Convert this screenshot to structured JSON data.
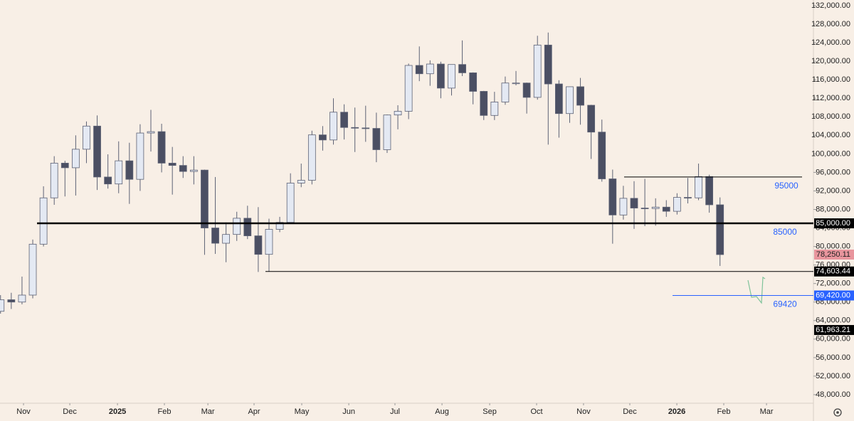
{
  "chart_data": {
    "type": "candlestick",
    "candles": [
      {
        "o": 66000,
        "h": 69500,
        "l": 65500,
        "c": 68500
      },
      {
        "o": 68500,
        "h": 70000,
        "l": 66500,
        "c": 68000
      },
      {
        "o": 68000,
        "h": 73500,
        "l": 67500,
        "c": 69500
      },
      {
        "o": 69500,
        "h": 81500,
        "l": 68800,
        "c": 80500
      },
      {
        "o": 80500,
        "h": 93000,
        "l": 80000,
        "c": 90500
      },
      {
        "o": 90500,
        "h": 99500,
        "l": 89000,
        "c": 98000
      },
      {
        "o": 98000,
        "h": 98500,
        "l": 90800,
        "c": 97000
      },
      {
        "o": 97000,
        "h": 104000,
        "l": 91000,
        "c": 101000
      },
      {
        "o": 101000,
        "h": 107000,
        "l": 98000,
        "c": 106000
      },
      {
        "o": 106000,
        "h": 108300,
        "l": 92200,
        "c": 95000
      },
      {
        "o": 95000,
        "h": 99900,
        "l": 92500,
        "c": 93500
      },
      {
        "o": 93500,
        "h": 102700,
        "l": 91500,
        "c": 98500
      },
      {
        "o": 98500,
        "h": 102400,
        "l": 89200,
        "c": 94500
      },
      {
        "o": 94500,
        "h": 106400,
        "l": 92000,
        "c": 104500
      },
      {
        "o": 104500,
        "h": 109500,
        "l": 100500,
        "c": 104800
      },
      {
        "o": 104800,
        "h": 106500,
        "l": 96000,
        "c": 98000
      },
      {
        "o": 98000,
        "h": 101500,
        "l": 91200,
        "c": 97500
      },
      {
        "o": 97500,
        "h": 99500,
        "l": 94800,
        "c": 96200
      },
      {
        "o": 96200,
        "h": 99500,
        "l": 93400,
        "c": 96500
      },
      {
        "o": 96500,
        "h": 96600,
        "l": 78200,
        "c": 84000
      },
      {
        "o": 84000,
        "h": 95000,
        "l": 78400,
        "c": 80700
      },
      {
        "o": 80700,
        "h": 85200,
        "l": 76600,
        "c": 82600
      },
      {
        "o": 82600,
        "h": 87500,
        "l": 81200,
        "c": 86100
      },
      {
        "o": 86100,
        "h": 88800,
        "l": 81600,
        "c": 82300
      },
      {
        "o": 82300,
        "h": 88500,
        "l": 74500,
        "c": 78300
      },
      {
        "o": 78300,
        "h": 86000,
        "l": 74600,
        "c": 83700
      },
      {
        "o": 83700,
        "h": 86400,
        "l": 83100,
        "c": 85200
      },
      {
        "o": 85200,
        "h": 95800,
        "l": 85100,
        "c": 93700
      },
      {
        "o": 93700,
        "h": 97900,
        "l": 92800,
        "c": 94300
      },
      {
        "o": 94300,
        "h": 105000,
        "l": 93400,
        "c": 104100
      },
      {
        "o": 104100,
        "h": 106000,
        "l": 100700,
        "c": 103000
      },
      {
        "o": 103000,
        "h": 112000,
        "l": 102000,
        "c": 109000
      },
      {
        "o": 109000,
        "h": 110700,
        "l": 103100,
        "c": 105700
      },
      {
        "o": 105700,
        "h": 110000,
        "l": 100400,
        "c": 105600
      },
      {
        "o": 105600,
        "h": 110400,
        "l": 102600,
        "c": 105500
      },
      {
        "o": 105500,
        "h": 108900,
        "l": 98200,
        "c": 100900
      },
      {
        "o": 100900,
        "h": 108500,
        "l": 100200,
        "c": 108400
      },
      {
        "o": 108400,
        "h": 110500,
        "l": 105300,
        "c": 109200
      },
      {
        "o": 109200,
        "h": 119500,
        "l": 107500,
        "c": 119100
      },
      {
        "o": 119100,
        "h": 123200,
        "l": 115700,
        "c": 117300
      },
      {
        "o": 117300,
        "h": 120200,
        "l": 114700,
        "c": 119400
      },
      {
        "o": 119400,
        "h": 119900,
        "l": 112000,
        "c": 114200
      },
      {
        "o": 114200,
        "h": 119300,
        "l": 112600,
        "c": 119300
      },
      {
        "o": 119300,
        "h": 124500,
        "l": 116800,
        "c": 117500
      },
      {
        "o": 117500,
        "h": 117600,
        "l": 110700,
        "c": 113500
      },
      {
        "o": 113500,
        "h": 113600,
        "l": 107300,
        "c": 108300
      },
      {
        "o": 108300,
        "h": 113400,
        "l": 107300,
        "c": 111200
      },
      {
        "o": 111200,
        "h": 116700,
        "l": 110600,
        "c": 115300
      },
      {
        "o": 115300,
        "h": 117900,
        "l": 114800,
        "c": 115300
      },
      {
        "o": 115300,
        "h": 115400,
        "l": 108700,
        "c": 112200
      },
      {
        "o": 112200,
        "h": 125500,
        "l": 111700,
        "c": 123500
      },
      {
        "o": 123500,
        "h": 126200,
        "l": 102000,
        "c": 115100
      },
      {
        "o": 115100,
        "h": 115900,
        "l": 103500,
        "c": 108700
      },
      {
        "o": 108700,
        "h": 114000,
        "l": 106700,
        "c": 114500
      },
      {
        "o": 114500,
        "h": 116400,
        "l": 106300,
        "c": 110500
      },
      {
        "o": 110500,
        "h": 110600,
        "l": 98900,
        "c": 104700
      },
      {
        "o": 104700,
        "h": 107400,
        "l": 94000,
        "c": 94600
      },
      {
        "o": 94600,
        "h": 96600,
        "l": 80600,
        "c": 86800
      },
      {
        "o": 86800,
        "h": 93100,
        "l": 85800,
        "c": 90400
      },
      {
        "o": 90400,
        "h": 94100,
        "l": 83800,
        "c": 88300
      },
      {
        "o": 88300,
        "h": 94600,
        "l": 84400,
        "c": 88200
      },
      {
        "o": 88200,
        "h": 90400,
        "l": 84500,
        "c": 88500
      },
      {
        "o": 88500,
        "h": 90000,
        "l": 86400,
        "c": 87600
      },
      {
        "o": 87600,
        "h": 91500,
        "l": 86900,
        "c": 90600
      },
      {
        "o": 90600,
        "h": 94800,
        "l": 89300,
        "c": 90500
      },
      {
        "o": 90500,
        "h": 97900,
        "l": 90000,
        "c": 95100
      },
      {
        "o": 95100,
        "h": 95500,
        "l": 87300,
        "c": 89000
      },
      {
        "o": 89000,
        "h": 90600,
        "l": 75800,
        "c": 78250
      }
    ],
    "up_color": "#e4e9f3",
    "down_color": "#4b4f63",
    "wick_color": "#5d6275",
    "xlim": [
      -0.05,
      75.7
    ],
    "xticks": [
      {
        "value": 2.14,
        "label": "Nov"
      },
      {
        "value": 6.45,
        "label": "Dec"
      },
      {
        "value": 10.89,
        "label": "2025"
      },
      {
        "value": 15.26,
        "label": "Feb"
      },
      {
        "value": 19.31,
        "label": "Mar"
      },
      {
        "value": 23.61,
        "label": "Apr"
      },
      {
        "value": 28.05,
        "label": "May"
      },
      {
        "value": 32.43,
        "label": "Jun"
      },
      {
        "value": 36.73,
        "label": "Jul"
      },
      {
        "value": 41.11,
        "label": "Aug"
      },
      {
        "value": 45.55,
        "label": "Sep"
      },
      {
        "value": 49.92,
        "label": "Oct"
      },
      {
        "value": 54.29,
        "label": "Nov"
      },
      {
        "value": 58.6,
        "label": "Dec"
      },
      {
        "value": 62.98,
        "label": "2026"
      },
      {
        "value": 67.35,
        "label": "Feb"
      },
      {
        "value": 71.33,
        "label": "Mar"
      }
    ],
    "ylim": [
      46154,
      133226
    ],
    "yticks": [
      {
        "value": 48000,
        "label": "48,000.00"
      },
      {
        "value": 52000,
        "label": "52,000.00"
      },
      {
        "value": 56000,
        "label": "56,000.00"
      },
      {
        "value": 60000,
        "label": "60,000.00"
      },
      {
        "value": 64000,
        "label": "64,000.00"
      },
      {
        "value": 68000,
        "label": "68,000.00"
      },
      {
        "value": 72000,
        "label": "72,000.00"
      },
      {
        "value": 76000,
        "label": "76,000.00"
      },
      {
        "value": 80000,
        "label": "80,000.00"
      },
      {
        "value": 84000,
        "label": "84,000.00"
      },
      {
        "value": 88000,
        "label": "88,000.00"
      },
      {
        "value": 92000,
        "label": "92,000.00"
      },
      {
        "value": 96000,
        "label": "96,000.00"
      },
      {
        "value": 100000,
        "label": "100,000.00"
      },
      {
        "value": 104000,
        "label": "104,000.00"
      },
      {
        "value": 108000,
        "label": "108,000.00"
      },
      {
        "value": 112000,
        "label": "112,000.00"
      },
      {
        "value": 116000,
        "label": "116,000.00"
      },
      {
        "value": 120000,
        "label": "120,000.00"
      },
      {
        "value": 124000,
        "label": "124,000.00"
      },
      {
        "value": 128000,
        "label": "128,000.00"
      },
      {
        "value": 132000,
        "label": "132,000.00"
      }
    ],
    "levels": [
      {
        "value": 95000,
        "label": "95000",
        "color": "#000000",
        "start": 58.07,
        "end": 74.64
      },
      {
        "value": 85000,
        "label": "85000",
        "color": "#000000",
        "start": 3.4,
        "axis_label": "85,000.00",
        "thick": true
      },
      {
        "value": 74603.44,
        "color": "#000000",
        "start": 24.67,
        "axis_label": "74,603.44"
      },
      {
        "value": 69420,
        "label": "69420",
        "color": "#2962ff",
        "start": 62.58,
        "axis_label": "69,420.00"
      }
    ],
    "price_labels": [
      {
        "value": 78250.11,
        "label": "78,250.11",
        "color": "#e8959d",
        "text_color": "#222222"
      },
      {
        "value": 61963.21,
        "label": "61,963.21",
        "color": "#000000",
        "text_color": "#ffffff"
      }
    ]
  }
}
